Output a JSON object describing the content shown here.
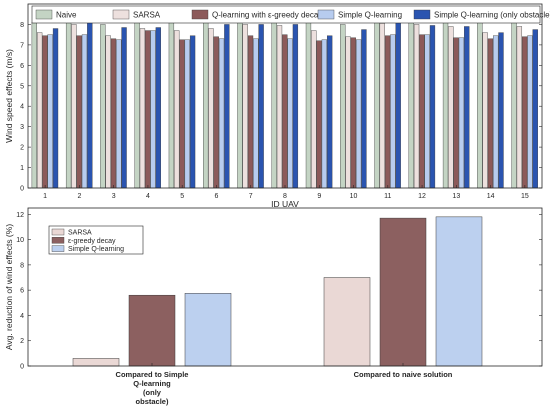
{
  "chart_data": [
    {
      "type": "bar",
      "xlabel": "ID UAV",
      "ylabel": "Wind speed effects (m/s)",
      "ylim": [
        0,
        9
      ],
      "yticks": [
        0,
        1,
        2,
        3,
        4,
        5,
        6,
        7,
        8
      ],
      "categories": [
        "1",
        "2",
        "3",
        "4",
        "5",
        "6",
        "7",
        "8",
        "9",
        "10",
        "11",
        "12",
        "13",
        "14",
        "15"
      ],
      "legend_position": "top",
      "series": [
        {
          "name": "Naive",
          "color": "#c4d4c4",
          "values": [
            8.1,
            8.65,
            8.0,
            8.3,
            8.35,
            8.45,
            8.45,
            8.5,
            8.5,
            8.0,
            8.7,
            8.65,
            8.3,
            8.1,
            8.45
          ]
        },
        {
          "name": "SARSA",
          "color": "#ede0de",
          "values": [
            7.6,
            8.0,
            7.45,
            7.8,
            7.7,
            7.8,
            8.0,
            7.95,
            7.7,
            7.4,
            8.05,
            8.0,
            7.9,
            7.6,
            7.9
          ]
        },
        {
          "name": "Q-learning with ε-greedy decay",
          "color": "#8c5a5a",
          "values": [
            7.45,
            7.45,
            7.3,
            7.7,
            7.25,
            7.4,
            7.45,
            7.5,
            7.2,
            7.35,
            7.45,
            7.5,
            7.35,
            7.3,
            7.4
          ]
        },
        {
          "name": "Simple Q-learning",
          "color": "#b7ccef",
          "values": [
            7.5,
            7.5,
            7.25,
            7.7,
            7.25,
            7.3,
            7.3,
            7.3,
            7.25,
            7.25,
            7.5,
            7.5,
            7.35,
            7.45,
            7.45
          ]
        },
        {
          "name": "Simple Q-learning (only obstacle)",
          "color": "#2a54b0",
          "values": [
            7.8,
            8.2,
            7.85,
            7.85,
            7.45,
            8.0,
            8.0,
            8.0,
            7.45,
            7.75,
            8.2,
            7.95,
            7.9,
            7.6,
            7.75
          ]
        }
      ]
    },
    {
      "type": "bar",
      "xlabel": "",
      "ylabel": "Avg. reduction of wind effects (%)",
      "ylim": [
        0,
        12.5
      ],
      "yticks": [
        0,
        2,
        4,
        6,
        8,
        10,
        12
      ],
      "categories": [
        {
          "lines": [
            "Compared to Simple",
            "Q-learning",
            "(only",
            "obstacle)"
          ]
        },
        {
          "lines": [
            "Compared to naive solution"
          ]
        }
      ],
      "legend_position": "top-left",
      "series": [
        {
          "name": "SARSA",
          "color": "#ead8d5",
          "values": [
            0.6,
            7.0
          ]
        },
        {
          "name": "ε-greedy decay",
          "color": "#8c6060",
          "values": [
            5.6,
            11.7
          ]
        },
        {
          "name": "Simple Q-learning",
          "color": "#bcd0ef",
          "values": [
            5.75,
            11.8
          ]
        }
      ]
    }
  ]
}
